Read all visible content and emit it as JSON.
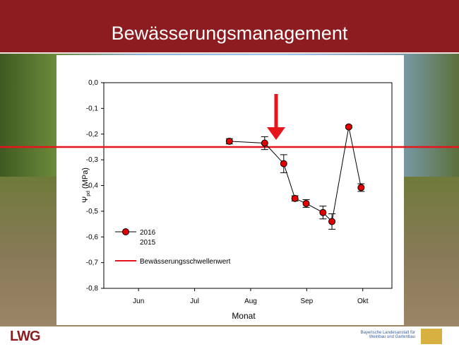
{
  "slide": {
    "title": "Bewässerungsmanagement"
  },
  "footer": {
    "logo": "LWG",
    "institute_line1": "Bayerische Landesanstalt für",
    "institute_line2": "Weinbau und Gartenbau"
  },
  "chart_data": {
    "type": "scatter",
    "xlabel": "Monat",
    "ylabel": "Ψ",
    "ylabel_sub": "pd",
    "ylabel_unit": "(MPa)",
    "xlim": [
      5.38,
      10.52
    ],
    "xticks": [
      {
        "value": 6,
        "label": "Jun"
      },
      {
        "value": 7,
        "label": "Jul"
      },
      {
        "value": 8,
        "label": "Aug"
      },
      {
        "value": 9,
        "label": "Sep"
      },
      {
        "value": 10,
        "label": "Okt"
      }
    ],
    "ylim": [
      -0.8,
      0
    ],
    "yticks": [
      {
        "value": 0,
        "label": "0,0"
      },
      {
        "value": -0.1,
        "label": "-0,1"
      },
      {
        "value": -0.2,
        "label": "-0,2"
      },
      {
        "value": -0.3,
        "label": "-0,3"
      },
      {
        "value": -0.4,
        "label": "-0,4"
      },
      {
        "value": -0.5,
        "label": "-0,5"
      },
      {
        "value": -0.6,
        "label": "-0,6"
      },
      {
        "value": -0.7,
        "label": "-0,7"
      },
      {
        "value": -0.8,
        "label": "-0,8"
      }
    ],
    "x": [
      7.62,
      8.25,
      8.59,
      8.79,
      8.99,
      9.29,
      9.45,
      9.75,
      9.97
    ],
    "series": [
      {
        "name": "2016",
        "color": "#e00000",
        "values": [
          -0.228,
          -0.235,
          -0.315,
          -0.45,
          -0.47,
          -0.505,
          -0.54,
          -0.172,
          -0.408
        ],
        "errors": [
          0.01,
          0.025,
          0.035,
          0.01,
          0.015,
          0.025,
          0.03,
          0.005,
          0.015
        ]
      },
      {
        "name": "2015",
        "color": "#e00000",
        "values": [
          null,
          null,
          null,
          null,
          null,
          null,
          null,
          null,
          null
        ]
      }
    ],
    "threshold": {
      "name": "Bewässerungsschwellenwert",
      "value": -0.25,
      "color": "#e8141c"
    }
  }
}
